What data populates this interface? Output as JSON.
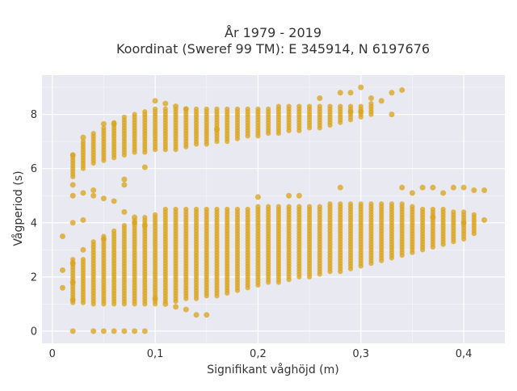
{
  "chart_data": {
    "type": "scatter",
    "title_line1": "År 1979 - 2019",
    "title_line2": "Koordinat (Sweref 99 TM): E 345914, N 6197676",
    "xlabel": "Signifikant våghöjd (m)",
    "ylabel": "Vågperiod (s)",
    "xlim": [
      -0.01,
      0.44
    ],
    "ylim": [
      -0.45,
      9.45
    ],
    "x_ticks": [
      0,
      0.1,
      0.2,
      0.3,
      0.4
    ],
    "x_tick_labels": [
      "0",
      "0,1",
      "0,2",
      "0,3",
      "0,4"
    ],
    "y_ticks": [
      0,
      2,
      4,
      6,
      8
    ],
    "y_tick_labels": [
      "0",
      "2",
      "4",
      "6",
      "8"
    ],
    "grid": true,
    "colors": {
      "point": "#DAA520",
      "plot_bg": "#E9E9F1",
      "grid": "#FFFFFF"
    },
    "series": [
      {
        "point_size": 3.5,
        "x": [
          0.01,
          0.01,
          0.01,
          0.02,
          0.02,
          0.02,
          0.02,
          0.02,
          0.02,
          0.02,
          0.02,
          0.03,
          0.03,
          0.03,
          0.03,
          0.04,
          0.04,
          0.04,
          0.05,
          0.05,
          0.05,
          0.05,
          0.06,
          0.06,
          0.06,
          0.07,
          0.07,
          0.07,
          0.07,
          0.08,
          0.08,
          0.08,
          0.09,
          0.09,
          0.09,
          0.1,
          0.1,
          0.11,
          0.11,
          0.12,
          0.12,
          0.13,
          0.13,
          0.14,
          0.15,
          0.16,
          0.2,
          0.23,
          0.24,
          0.26,
          0.28,
          0.28,
          0.29,
          0.29,
          0.3,
          0.3,
          0.31,
          0.32,
          0.33,
          0.33,
          0.34,
          0.34,
          0.35,
          0.36,
          0.37,
          0.37,
          0.38,
          0.39,
          0.4,
          0.4,
          0.41,
          0.42,
          0.42
        ],
        "y": [
          1.6,
          2.25,
          3.5,
          6.5,
          5.4,
          5.0,
          4.0,
          2.5,
          1.8,
          1.15,
          0,
          7.15,
          5.1,
          4.1,
          3.0,
          5.2,
          5.0,
          0,
          7.65,
          4.9,
          3.4,
          0,
          7.65,
          4.8,
          0,
          5.6,
          5.4,
          4.4,
          0,
          4.2,
          4.0,
          0,
          6.05,
          3.9,
          0,
          8.5,
          1.2,
          8.4,
          1.0,
          8.3,
          0.9,
          8.2,
          0.8,
          0.6,
          0.6,
          7.45,
          4.95,
          5.0,
          5.0,
          8.6,
          8.8,
          5.3,
          8.8,
          8.1,
          9.0,
          8.1,
          8.6,
          8.5,
          8.8,
          8.0,
          8.9,
          5.3,
          5.1,
          5.3,
          5.3,
          4.2,
          5.1,
          5.3,
          5.3,
          4.0,
          5.2,
          5.2,
          4.1
        ]
      }
    ],
    "columns": {
      "x": [
        0.02,
        0.03,
        0.04,
        0.05,
        0.06,
        0.07,
        0.08,
        0.09,
        0.1,
        0.11,
        0.12,
        0.13,
        0.14,
        0.15,
        0.16,
        0.17,
        0.18,
        0.19,
        0.2,
        0.21,
        0.22,
        0.23,
        0.24,
        0.25,
        0.26,
        0.27,
        0.28,
        0.29,
        0.3,
        0.31,
        0.32,
        0.33,
        0.34,
        0.35,
        0.36,
        0.37,
        0.38,
        0.39,
        0.4,
        0.41
      ],
      "lower": [
        [
          1.05,
          2.7
        ],
        [
          1.05,
          2.7
        ],
        [
          1.0,
          3.3
        ],
        [
          1.0,
          3.5
        ],
        [
          1.0,
          3.7
        ],
        [
          1.0,
          3.9
        ],
        [
          1.0,
          4.1
        ],
        [
          1.0,
          4.2
        ],
        [
          1.0,
          4.3
        ],
        [
          1.1,
          4.5
        ],
        [
          1.1,
          4.5
        ],
        [
          1.2,
          4.5
        ],
        [
          1.2,
          4.5
        ],
        [
          1.3,
          4.5
        ],
        [
          1.3,
          4.5
        ],
        [
          1.4,
          4.5
        ],
        [
          1.5,
          4.5
        ],
        [
          1.6,
          4.5
        ],
        [
          1.7,
          4.6
        ],
        [
          1.8,
          4.6
        ],
        [
          1.8,
          4.6
        ],
        [
          1.9,
          4.6
        ],
        [
          2.0,
          4.6
        ],
        [
          2.0,
          4.6
        ],
        [
          2.1,
          4.6
        ],
        [
          2.2,
          4.7
        ],
        [
          2.2,
          4.7
        ],
        [
          2.3,
          4.7
        ],
        [
          2.4,
          4.7
        ],
        [
          2.5,
          4.7
        ],
        [
          2.6,
          4.7
        ],
        [
          2.7,
          4.7
        ],
        [
          2.8,
          4.7
        ],
        [
          2.9,
          4.6
        ],
        [
          3.0,
          4.5
        ],
        [
          3.1,
          4.5
        ],
        [
          3.2,
          4.5
        ],
        [
          3.3,
          4.4
        ],
        [
          3.4,
          4.4
        ],
        [
          3.6,
          4.3
        ]
      ],
      "upper": [
        [
          5.7,
          6.5
        ],
        [
          6.0,
          7.0
        ],
        [
          6.2,
          7.3
        ],
        [
          6.3,
          7.5
        ],
        [
          6.4,
          7.7
        ],
        [
          6.5,
          7.9
        ],
        [
          6.6,
          8.0
        ],
        [
          6.6,
          8.1
        ],
        [
          6.7,
          8.2
        ],
        [
          6.7,
          8.2
        ],
        [
          6.7,
          8.2
        ],
        [
          6.8,
          8.2
        ],
        [
          6.9,
          8.2
        ],
        [
          6.9,
          8.2
        ],
        [
          7.0,
          8.2
        ],
        [
          7.0,
          8.2
        ],
        [
          7.1,
          8.2
        ],
        [
          7.2,
          8.2
        ],
        [
          7.2,
          8.2
        ],
        [
          7.3,
          8.2
        ],
        [
          7.3,
          8.3
        ],
        [
          7.4,
          8.3
        ],
        [
          7.4,
          8.3
        ],
        [
          7.5,
          8.3
        ],
        [
          7.5,
          8.3
        ],
        [
          7.6,
          8.3
        ],
        [
          7.7,
          8.3
        ],
        [
          7.8,
          8.3
        ],
        [
          7.9,
          8.3
        ],
        [
          8.0,
          8.4
        ]
      ],
      "upper_x_count": 30,
      "step": 0.1
    }
  }
}
